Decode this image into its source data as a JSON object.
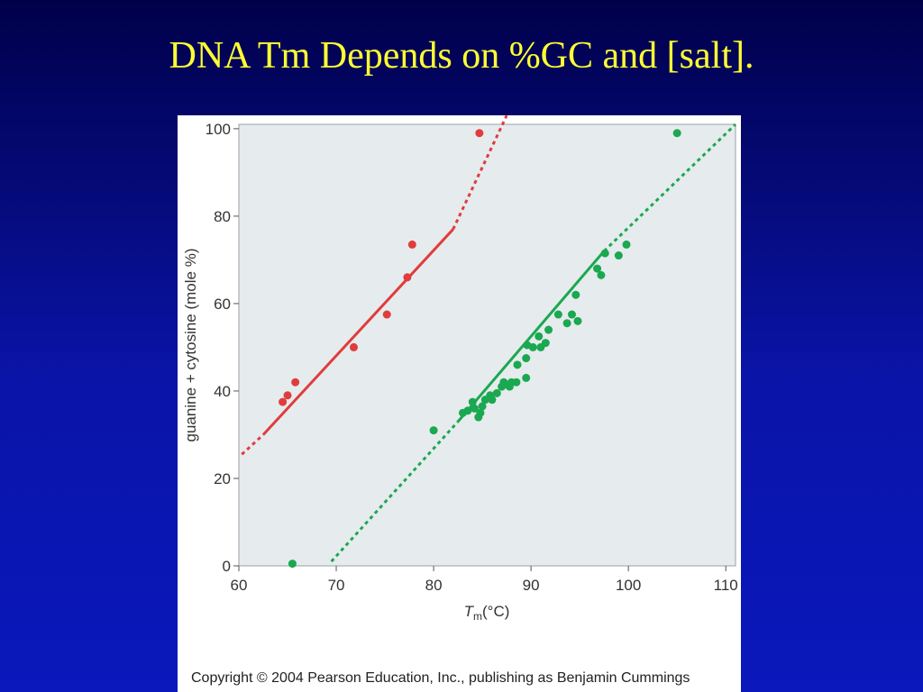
{
  "slide": {
    "title": "DNA Tm Depends on %GC and [salt]."
  },
  "colors": {
    "background_top": "#00004a",
    "background_bottom": "#0a18bc",
    "title": "#ffff33",
    "plot_bg": "#e6ebee",
    "red_series": "#e03c3c",
    "green_series": "#1aa850"
  },
  "chart_data": {
    "type": "scatter",
    "title": "",
    "xlabel_main": "T",
    "xlabel_sub": "m",
    "xlabel_rest": "(°C)",
    "ylabel": "guanine + cytosine (mole %)",
    "xlim": [
      60,
      111
    ],
    "ylim": [
      0,
      101
    ],
    "xticks": [
      "60",
      "70",
      "80",
      "90",
      "100",
      "110"
    ],
    "yticks": [
      "0",
      "20",
      "40",
      "60",
      "80",
      "100"
    ],
    "grid": false,
    "series": [
      {
        "color": "#e03c3c",
        "points": [
          [
            64.5,
            37.5
          ],
          [
            65,
            39
          ],
          [
            65.8,
            42
          ],
          [
            71.8,
            50
          ],
          [
            75.2,
            57.5
          ],
          [
            77.3,
            66
          ],
          [
            77.8,
            73.5
          ],
          [
            84.7,
            99
          ]
        ],
        "fit_solid": [
          [
            62.5,
            30
          ],
          [
            82,
            77
          ]
        ],
        "fit_dotted_low": [
          [
            60.3,
            25.5
          ],
          [
            62.5,
            30
          ]
        ],
        "fit_dotted_high": [
          [
            82,
            77
          ],
          [
            87.5,
            103
          ]
        ]
      },
      {
        "color": "#1aa850",
        "points": [
          [
            65.5,
            0.5
          ],
          [
            80,
            31
          ],
          [
            83,
            35
          ],
          [
            83.5,
            35.5
          ],
          [
            84,
            37.5
          ],
          [
            84.2,
            36
          ],
          [
            84.6,
            34
          ],
          [
            84.8,
            35
          ],
          [
            85,
            36.5
          ],
          [
            85.3,
            38
          ],
          [
            85.8,
            39
          ],
          [
            86,
            38
          ],
          [
            86.5,
            39.5
          ],
          [
            87,
            41
          ],
          [
            87.2,
            42
          ],
          [
            87.8,
            41
          ],
          [
            88,
            42
          ],
          [
            88.5,
            42
          ],
          [
            88.6,
            46
          ],
          [
            89.5,
            43
          ],
          [
            89.5,
            47.5
          ],
          [
            89.6,
            50.5
          ],
          [
            90.2,
            50
          ],
          [
            90.8,
            52.5
          ],
          [
            91,
            50
          ],
          [
            91.5,
            51
          ],
          [
            91.8,
            54
          ],
          [
            92.8,
            57.5
          ],
          [
            93.7,
            55.5
          ],
          [
            94.2,
            57.5
          ],
          [
            94.6,
            62
          ],
          [
            94.8,
            56
          ],
          [
            96.8,
            68
          ],
          [
            97.2,
            66.5
          ],
          [
            97.6,
            71.5
          ],
          [
            99,
            71
          ],
          [
            99.8,
            73.5
          ],
          [
            105,
            99
          ]
        ],
        "fit_solid": [
          [
            82.5,
            33
          ],
          [
            97.5,
            72
          ]
        ],
        "fit_dotted_low": [
          [
            69.5,
            1
          ],
          [
            82.5,
            33
          ]
        ],
        "fit_dotted_high": [
          [
            97.5,
            72
          ],
          [
            111,
            101
          ]
        ]
      }
    ]
  },
  "copyright": "Copyright © 2004 Pearson Education, Inc., publishing as Benjamin Cummings"
}
